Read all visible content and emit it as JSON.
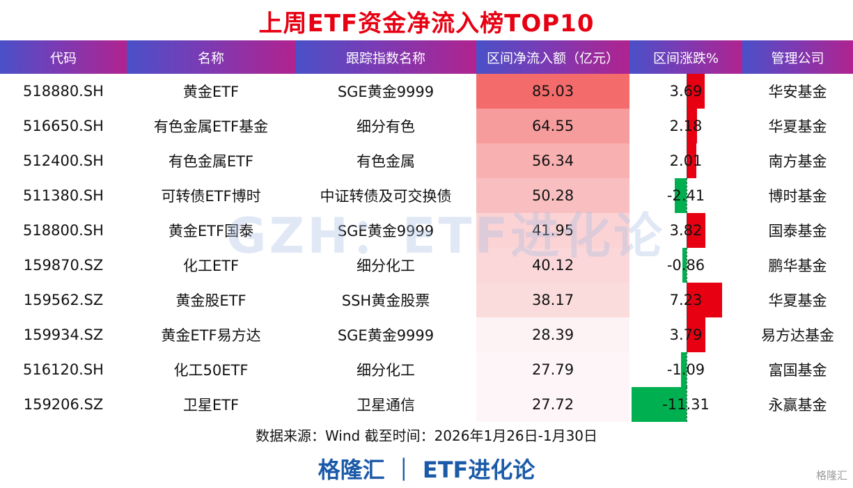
{
  "title": "上周ETF资金净流入榜TOP10",
  "headers": [
    "代码",
    "名称",
    "跟踪指数名称",
    "区间净流入额（亿元）",
    "区间涨跌%",
    "管理公司"
  ],
  "watermark": "GZH：ETF进化论",
  "source": "数据来源：Wind 截至时间：2026年1月26日-1月30日",
  "footer": "格隆汇 ｜ ETF进化论",
  "logo": "格隆汇",
  "colors": {
    "header_start": "#4a50c8",
    "header_end": "#b0238f",
    "positive": "#e60012",
    "negative": "#00b050",
    "title": "#e60012",
    "footer": "#1b5aa8"
  },
  "chart_data": {
    "type": "table",
    "columns": [
      "代码",
      "名称",
      "跟踪指数名称",
      "区间净流入额（亿元）",
      "区间涨跌%",
      "管理公司"
    ],
    "rows": [
      {
        "code": "518880.SH",
        "name": "黄金ETF",
        "index": "SGE黄金9999",
        "flow": "85.03",
        "change": "3.69",
        "company": "华安基金"
      },
      {
        "code": "516650.SH",
        "name": "有色金属ETF基金",
        "index": "细分有色",
        "flow": "64.55",
        "change": "2.18",
        "company": "华夏基金"
      },
      {
        "code": "512400.SH",
        "name": "有色金属ETF",
        "index": "有色金属",
        "flow": "56.34",
        "change": "2.01",
        "company": "南方基金"
      },
      {
        "code": "511380.SH",
        "name": "可转债ETF博时",
        "index": "中证转债及可交换债",
        "flow": "50.28",
        "change": "-2.41",
        "company": "博时基金"
      },
      {
        "code": "518800.SH",
        "name": "黄金ETF国泰",
        "index": "SGE黄金9999",
        "flow": "41.95",
        "change": "3.82",
        "company": "国泰基金"
      },
      {
        "code": "159870.SZ",
        "name": "化工ETF",
        "index": "细分化工",
        "flow": "40.12",
        "change": "-0.86",
        "company": "鹏华基金"
      },
      {
        "code": "159562.SZ",
        "name": "黄金股ETF",
        "index": "SSH黄金股票",
        "flow": "38.17",
        "change": "7.23",
        "company": "华夏基金"
      },
      {
        "code": "159934.SZ",
        "name": "黄金ETF易方达",
        "index": "SGE黄金9999",
        "flow": "28.39",
        "change": "3.79",
        "company": "易方达基金"
      },
      {
        "code": "516120.SH",
        "name": "化工50ETF",
        "index": "细分化工",
        "flow": "27.79",
        "change": "-1.09",
        "company": "富国基金"
      },
      {
        "code": "159206.SZ",
        "name": "卫星ETF",
        "index": "卫星通信",
        "flow": "27.72",
        "change": "-11.31",
        "company": "永赢基金"
      }
    ]
  }
}
